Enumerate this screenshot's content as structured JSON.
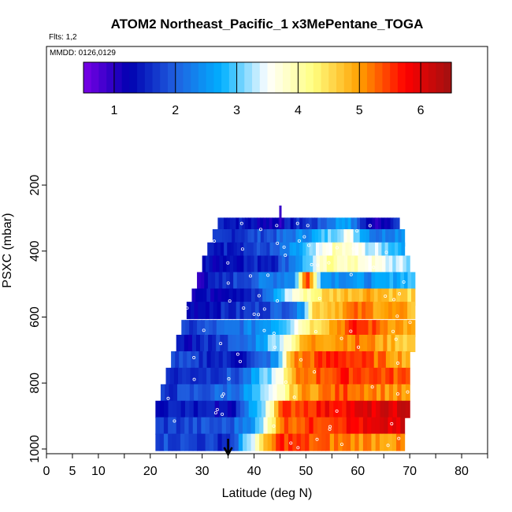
{
  "chart_data": {
    "type": "heatmap",
    "title": "ATOM2 Northeast_Pacific_1 x3MePentane_TOGA",
    "flights_label": "Flts: 1,2",
    "date_label": "MMDD: 0126,0129",
    "xlabel": "Latitude (deg N)",
    "ylabel": "PSXC (mbar)",
    "xlim": [
      0,
      85
    ],
    "ylim": [
      1010,
      0
    ],
    "x_ticks": [
      0,
      5,
      10,
      20,
      30,
      40,
      50,
      60,
      70,
      80
    ],
    "x_minor_ticks": [
      15,
      25,
      35,
      45,
      55,
      65,
      75,
      85
    ],
    "y_ticks": [
      200,
      400,
      600,
      800,
      1000
    ],
    "colorbar": {
      "range": [
        0.5,
        6.5
      ],
      "ticks": [
        1,
        2,
        3,
        4,
        5,
        6
      ],
      "colors": [
        "#7a00e6",
        "#0000b0",
        "#2060e0",
        "#00b0ff",
        "#ffffff",
        "#ffff80",
        "#ffa000",
        "#ff0000",
        "#a01010"
      ]
    },
    "marker_arrow": {
      "x": 35,
      "y": 1000
    },
    "layers": [
      {
        "p": 325,
        "x0": 33,
        "x1": 68,
        "stops": [
          [
            0,
            1.6
          ],
          [
            0.3,
            1.2
          ],
          [
            0.55,
            1.8
          ],
          [
            0.7,
            2.8
          ],
          [
            0.85,
            1.0
          ],
          [
            1,
            1.7
          ]
        ]
      },
      {
        "p": 360,
        "x0": 32,
        "x1": 69,
        "stops": [
          [
            0,
            1.5
          ],
          [
            0.35,
            2.0
          ],
          [
            0.55,
            2.7
          ],
          [
            0.7,
            3.6
          ],
          [
            0.85,
            2.2
          ],
          [
            1,
            2.6
          ]
        ]
      },
      {
        "p": 400,
        "x0": 31,
        "x1": 69,
        "stops": [
          [
            0,
            1.4
          ],
          [
            0.35,
            1.9
          ],
          [
            0.5,
            2.8
          ],
          [
            0.65,
            3.9
          ],
          [
            0.8,
            3.4
          ],
          [
            1,
            2.8
          ]
        ]
      },
      {
        "p": 440,
        "x0": 30,
        "x1": 70,
        "stops": [
          [
            0,
            1.3
          ],
          [
            0.35,
            1.6
          ],
          [
            0.48,
            2.7
          ],
          [
            0.62,
            4.1
          ],
          [
            0.8,
            3.7
          ],
          [
            1,
            3.1
          ]
        ]
      },
      {
        "p": 490,
        "x0": 29,
        "x1": 71,
        "stops": [
          [
            0,
            1.1
          ],
          [
            0.3,
            2.2
          ],
          [
            0.45,
            2.5
          ],
          [
            0.5,
            5.8
          ],
          [
            0.58,
            2.6
          ],
          [
            0.8,
            2.4
          ],
          [
            1,
            3.0
          ]
        ]
      },
      {
        "p": 540,
        "x0": 28,
        "x1": 71,
        "stops": [
          [
            0,
            1.2
          ],
          [
            0.3,
            1.6
          ],
          [
            0.45,
            3.6
          ],
          [
            0.6,
            4.6
          ],
          [
            0.8,
            5.0
          ],
          [
            1,
            4.5
          ]
        ]
      },
      {
        "p": 580,
        "x0": 27,
        "x1": 71,
        "stops": [
          [
            0,
            1.3
          ],
          [
            0.3,
            1.7
          ],
          [
            0.5,
            2.3
          ],
          [
            0.55,
            4.6
          ],
          [
            0.75,
            5.2
          ],
          [
            1,
            4.8
          ]
        ]
      },
      {
        "p": 635,
        "x0": 26,
        "x1": 71,
        "stops": [
          [
            0,
            1.6
          ],
          [
            0.3,
            2.3
          ],
          [
            0.45,
            3.1
          ],
          [
            0.55,
            4.4
          ],
          [
            0.75,
            5.6
          ],
          [
            1,
            4.8
          ]
        ]
      },
      {
        "p": 680,
        "x0": 25,
        "x1": 71,
        "stops": [
          [
            0,
            1.2
          ],
          [
            0.3,
            2.1
          ],
          [
            0.45,
            3.6
          ],
          [
            0.55,
            5.0
          ],
          [
            0.75,
            5.2
          ],
          [
            1,
            4.6
          ]
        ]
      },
      {
        "p": 730,
        "x0": 24,
        "x1": 70,
        "stops": [
          [
            0,
            1.8
          ],
          [
            0.3,
            1.4
          ],
          [
            0.45,
            2.5
          ],
          [
            0.5,
            5.0
          ],
          [
            0.7,
            5.7
          ],
          [
            1,
            4.9
          ]
        ]
      },
      {
        "p": 780,
        "x0": 23,
        "x1": 70,
        "stops": [
          [
            0,
            1.5
          ],
          [
            0.3,
            1.9
          ],
          [
            0.45,
            3.4
          ],
          [
            0.55,
            5.2
          ],
          [
            0.75,
            5.6
          ],
          [
            1,
            5.3
          ]
        ]
      },
      {
        "p": 830,
        "x0": 22,
        "x1": 70,
        "stops": [
          [
            0,
            1.6
          ],
          [
            0.3,
            2.2
          ],
          [
            0.45,
            3.3
          ],
          [
            0.55,
            4.9
          ],
          [
            0.75,
            5.4
          ],
          [
            1,
            4.9
          ]
        ]
      },
      {
        "p": 880,
        "x0": 21,
        "x1": 70,
        "stops": [
          [
            0,
            1.5
          ],
          [
            0.3,
            1.3
          ],
          [
            0.42,
            3.2
          ],
          [
            0.5,
            5.4
          ],
          [
            0.7,
            5.8
          ],
          [
            1,
            6.1
          ]
        ]
      },
      {
        "p": 930,
        "x0": 21,
        "x1": 69,
        "stops": [
          [
            0,
            1.7
          ],
          [
            0.3,
            1.9
          ],
          [
            0.42,
            2.9
          ],
          [
            0.5,
            5.3
          ],
          [
            0.7,
            5.6
          ],
          [
            1,
            6.0
          ]
        ]
      },
      {
        "p": 980,
        "x0": 21,
        "x1": 69,
        "stops": [
          [
            0,
            1.9
          ],
          [
            0.3,
            1.6
          ],
          [
            0.42,
            4.2
          ],
          [
            0.5,
            5.6
          ],
          [
            0.7,
            5.2
          ],
          [
            1,
            5.0
          ]
        ]
      }
    ],
    "spike": {
      "x": 45,
      "p0": 262,
      "p1": 330,
      "value": 0.9
    }
  }
}
